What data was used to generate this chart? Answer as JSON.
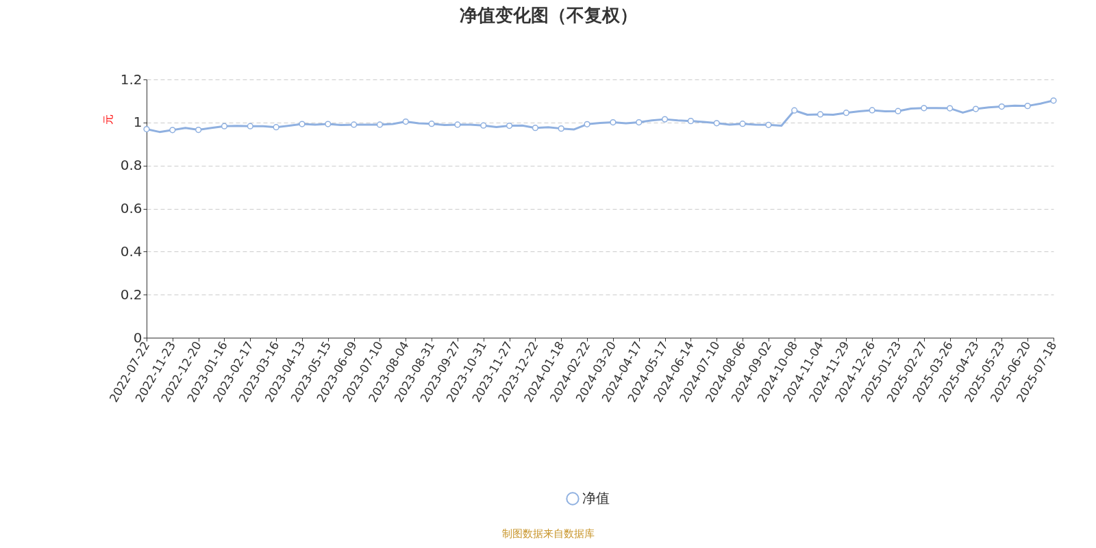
{
  "chart_data": {
    "type": "line",
    "title": "净值变化图（不复权）",
    "ylabel": "元",
    "annotations": [
      "制图数据来自数据库"
    ],
    "categories": [
      "2022-07-22",
      null,
      "2022-11-23",
      null,
      "2022-12-20",
      null,
      "2023-01-16",
      null,
      "2023-02-17",
      null,
      "2023-03-16",
      null,
      "2023-04-13",
      null,
      "2023-05-15",
      null,
      "2023-06-09",
      null,
      "2023-07-10",
      null,
      "2023-08-04",
      null,
      "2023-08-31",
      null,
      "2023-09-27",
      null,
      "2023-10-31",
      null,
      "2023-11-27",
      null,
      "2023-12-22",
      null,
      "2024-01-18",
      null,
      "2024-02-22",
      null,
      "2024-03-20",
      null,
      "2024-04-17",
      null,
      "2024-05-17",
      null,
      "2024-06-14",
      null,
      "2024-07-10",
      null,
      "2024-08-06",
      null,
      "2024-09-02",
      null,
      "2024-10-08",
      null,
      "2024-11-04",
      null,
      "2024-11-29",
      null,
      "2024-12-26",
      null,
      "2025-01-23",
      null,
      "2025-02-27",
      null,
      "2025-03-26",
      null,
      "2025-04-23",
      null,
      "2025-05-23",
      null,
      "2025-06-20",
      null,
      "2025-07-18"
    ],
    "series": [
      {
        "name": "净值",
        "color": "#8fb0e0",
        "values": [
          0.969,
          0.956,
          0.965,
          0.975,
          0.966,
          0.975,
          0.983,
          0.984,
          0.983,
          0.983,
          0.978,
          0.985,
          0.993,
          0.99,
          0.993,
          0.988,
          0.99,
          0.99,
          0.99,
          0.993,
          1.004,
          0.996,
          0.994,
          0.988,
          0.99,
          0.99,
          0.986,
          0.979,
          0.985,
          0.986,
          0.975,
          0.978,
          0.972,
          0.968,
          0.992,
          0.998,
          1.001,
          0.996,
          1.001,
          1.01,
          1.015,
          1.01,
          1.007,
          1.003,
          0.997,
          0.99,
          0.994,
          0.99,
          0.989,
          0.985,
          1.056,
          1.036,
          1.038,
          1.036,
          1.045,
          1.052,
          1.057,
          1.052,
          1.053,
          1.065,
          1.067,
          1.067,
          1.066,
          1.046,
          1.063,
          1.07,
          1.074,
          1.078,
          1.077,
          1.088,
          1.102
        ]
      }
    ],
    "ylim": [
      0,
      1.2
    ],
    "yticks": [
      0,
      0.2,
      0.4,
      0.6,
      0.8,
      1,
      1.2
    ],
    "grid": "y",
    "legend": "bottom",
    "marker": "circle",
    "line_style": "solid"
  }
}
